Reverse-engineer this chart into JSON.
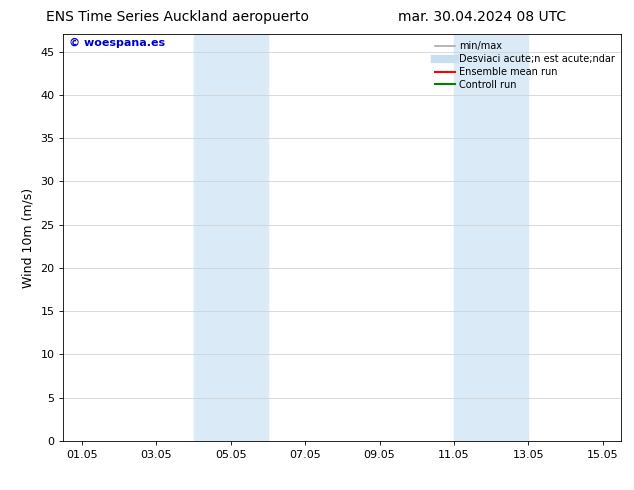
{
  "title_left": "ENS Time Series Auckland aeropuerto",
  "title_right": "mar. 30.04.2024 08 UTC",
  "ylabel": "Wind 10m (m/s)",
  "ylim": [
    0,
    47
  ],
  "yticks": [
    0,
    5,
    10,
    15,
    20,
    25,
    30,
    35,
    40,
    45
  ],
  "xlim": [
    0.5,
    15.5
  ],
  "xtick_labels": [
    "01.05",
    "03.05",
    "05.05",
    "07.05",
    "09.05",
    "11.05",
    "13.05",
    "15.05"
  ],
  "xtick_positions": [
    1,
    3,
    5,
    7,
    9,
    11,
    13,
    15
  ],
  "shaded_regions": [
    {
      "xmin": 4.0,
      "xmax": 6.0,
      "color": "#daeaf7"
    },
    {
      "xmin": 11.0,
      "xmax": 13.0,
      "color": "#daeaf7"
    }
  ],
  "background_color": "#ffffff",
  "plot_bg_color": "#ffffff",
  "grid_color": "#cccccc",
  "watermark_text": "© woespana.es",
  "watermark_color": "#0000cc",
  "legend_entries": [
    {
      "label": "min/max",
      "color": "#aaaaaa",
      "lw": 1.2,
      "linestyle": "-"
    },
    {
      "label": "Desviaci acute;n est acute;ndar",
      "color": "#c8dff0",
      "lw": 6,
      "linestyle": "-"
    },
    {
      "label": "Ensemble mean run",
      "color": "#ff0000",
      "lw": 1.5,
      "linestyle": "-"
    },
    {
      "label": "Controll run",
      "color": "#008000",
      "lw": 1.5,
      "linestyle": "-"
    }
  ],
  "title_fontsize": 10,
  "axis_label_fontsize": 9,
  "tick_fontsize": 8,
  "watermark_fontsize": 8,
  "legend_fontsize": 7
}
